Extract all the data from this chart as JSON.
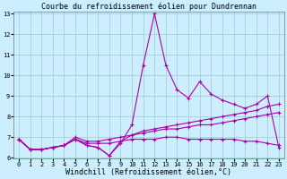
{
  "title": "Courbe du refroidissement éolien pour Dundrennan",
  "xlabel": "Windchill (Refroidissement éolien,°C)",
  "x": [
    0,
    1,
    2,
    3,
    4,
    5,
    6,
    7,
    8,
    9,
    10,
    11,
    12,
    13,
    14,
    15,
    16,
    17,
    18,
    19,
    20,
    21,
    22,
    23
  ],
  "line1": [
    6.9,
    6.4,
    6.4,
    6.5,
    6.6,
    6.9,
    6.6,
    6.5,
    6.1,
    6.7,
    7.6,
    10.5,
    13.0,
    10.5,
    9.3,
    8.9,
    9.7,
    9.1,
    8.8,
    8.6,
    8.4,
    8.6,
    9.0,
    6.5
  ],
  "line2": [
    6.9,
    6.4,
    6.4,
    6.5,
    6.6,
    6.9,
    6.6,
    6.5,
    6.1,
    6.8,
    7.1,
    7.3,
    7.4,
    7.5,
    7.6,
    7.7,
    7.8,
    7.9,
    8.0,
    8.1,
    8.2,
    8.3,
    8.5,
    8.6
  ],
  "line3": [
    6.9,
    6.4,
    6.4,
    6.5,
    6.6,
    7.0,
    6.8,
    6.8,
    6.9,
    7.0,
    7.1,
    7.2,
    7.3,
    7.4,
    7.4,
    7.5,
    7.6,
    7.6,
    7.7,
    7.8,
    7.9,
    8.0,
    8.1,
    8.2
  ],
  "line4": [
    6.9,
    6.4,
    6.4,
    6.5,
    6.6,
    6.9,
    6.7,
    6.7,
    6.7,
    6.8,
    6.9,
    6.9,
    6.9,
    7.0,
    7.0,
    6.9,
    6.9,
    6.9,
    6.9,
    6.9,
    6.8,
    6.8,
    6.7,
    6.6
  ],
  "color": "#aa00aa",
  "bg_color": "#cceeff",
  "grid_color": "#99cccc",
  "ylim": [
    6,
    13
  ],
  "xlim": [
    -0.5,
    23.5
  ],
  "yticks": [
    6,
    7,
    8,
    9,
    10,
    11,
    12,
    13
  ],
  "xticks": [
    0,
    1,
    2,
    3,
    4,
    5,
    6,
    7,
    8,
    9,
    10,
    11,
    12,
    13,
    14,
    15,
    16,
    17,
    18,
    19,
    20,
    21,
    22,
    23
  ],
  "marker": "+",
  "markersize": 3,
  "linewidth": 0.8,
  "title_fontsize": 6,
  "axis_fontsize": 6,
  "tick_fontsize": 5
}
